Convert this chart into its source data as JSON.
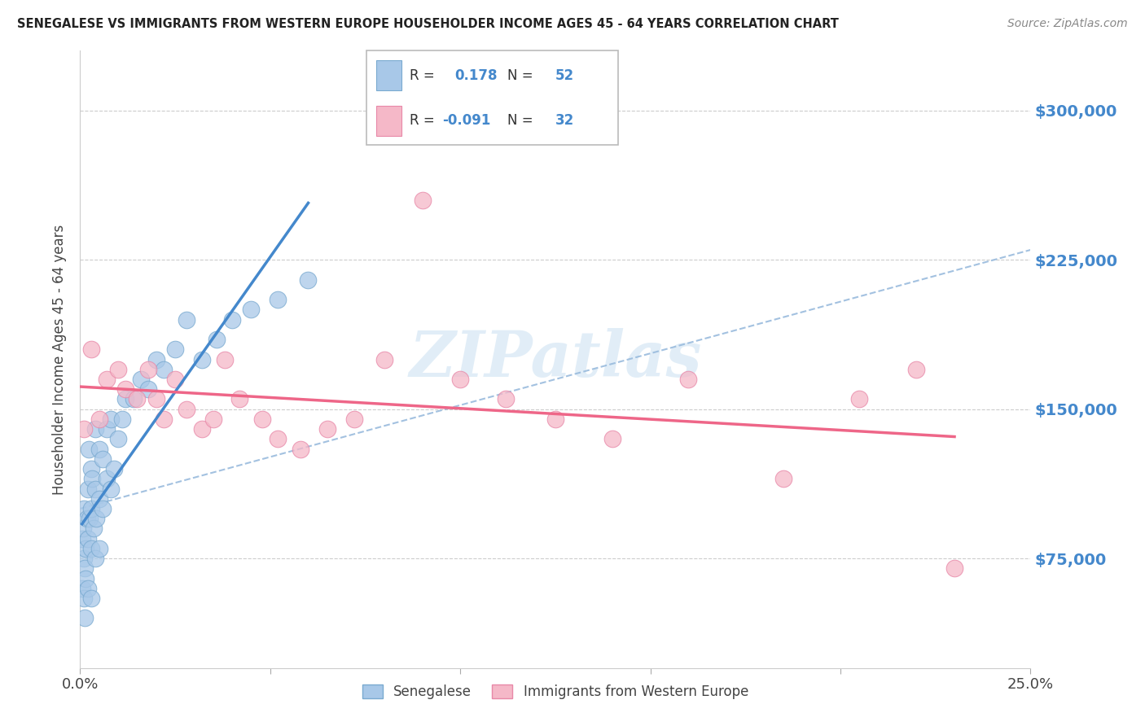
{
  "title": "SENEGALESE VS IMMIGRANTS FROM WESTERN EUROPE HOUSEHOLDER INCOME AGES 45 - 64 YEARS CORRELATION CHART",
  "source": "Source: ZipAtlas.com",
  "ylabel": "Householder Income Ages 45 - 64 years",
  "xlim": [
    0.0,
    0.25
  ],
  "ylim": [
    20000,
    330000
  ],
  "yticks": [
    75000,
    150000,
    225000,
    300000
  ],
  "ytick_labels": [
    "$75,000",
    "$150,000",
    "$225,000",
    "$300,000"
  ],
  "xtick_labels": [
    "0.0%",
    "25.0%"
  ],
  "color_blue": "#a8c8e8",
  "color_pink": "#f5b8c8",
  "color_blue_edge": "#7aaad0",
  "color_pink_edge": "#e888a8",
  "color_blue_line": "#4488cc",
  "color_pink_line": "#ee6688",
  "color_dashed": "#99bbdd",
  "watermark": "ZIPatlas",
  "watermark_color": "#c5ddf0",
  "title_color": "#222222",
  "source_color": "#888888",
  "axis_label_color": "#444444",
  "right_tick_color": "#4488cc",
  "legend_text_color": "#333333",
  "legend_r1": "R =  0.178",
  "legend_n1": "N = 52",
  "legend_r2": "R = -0.091",
  "legend_n2": "N = 32",
  "senegalese_x": [
    0.0005,
    0.0005,
    0.0008,
    0.001,
    0.001,
    0.001,
    0.0012,
    0.0012,
    0.0015,
    0.0015,
    0.0018,
    0.002,
    0.002,
    0.002,
    0.0022,
    0.0025,
    0.003,
    0.003,
    0.003,
    0.003,
    0.0032,
    0.0035,
    0.004,
    0.004,
    0.004,
    0.0042,
    0.005,
    0.005,
    0.005,
    0.006,
    0.006,
    0.007,
    0.007,
    0.008,
    0.008,
    0.009,
    0.01,
    0.011,
    0.012,
    0.014,
    0.016,
    0.018,
    0.02,
    0.022,
    0.025,
    0.028,
    0.032,
    0.036,
    0.04,
    0.045,
    0.052,
    0.06
  ],
  "senegalese_y": [
    85000,
    60000,
    90000,
    75000,
    55000,
    100000,
    70000,
    45000,
    80000,
    65000,
    95000,
    110000,
    85000,
    60000,
    130000,
    95000,
    120000,
    100000,
    80000,
    55000,
    115000,
    90000,
    140000,
    110000,
    75000,
    95000,
    105000,
    130000,
    80000,
    125000,
    100000,
    140000,
    115000,
    145000,
    110000,
    120000,
    135000,
    145000,
    155000,
    155000,
    165000,
    160000,
    175000,
    170000,
    180000,
    195000,
    175000,
    185000,
    195000,
    200000,
    205000,
    215000
  ],
  "western_europe_x": [
    0.001,
    0.003,
    0.005,
    0.007,
    0.01,
    0.012,
    0.015,
    0.018,
    0.02,
    0.022,
    0.025,
    0.028,
    0.032,
    0.035,
    0.038,
    0.042,
    0.048,
    0.052,
    0.058,
    0.065,
    0.072,
    0.08,
    0.09,
    0.1,
    0.112,
    0.125,
    0.14,
    0.16,
    0.185,
    0.205,
    0.22,
    0.23
  ],
  "western_europe_y": [
    140000,
    180000,
    145000,
    165000,
    170000,
    160000,
    155000,
    170000,
    155000,
    145000,
    165000,
    150000,
    140000,
    145000,
    175000,
    155000,
    145000,
    135000,
    130000,
    140000,
    145000,
    175000,
    255000,
    165000,
    155000,
    145000,
    135000,
    165000,
    115000,
    155000,
    170000,
    70000
  ]
}
